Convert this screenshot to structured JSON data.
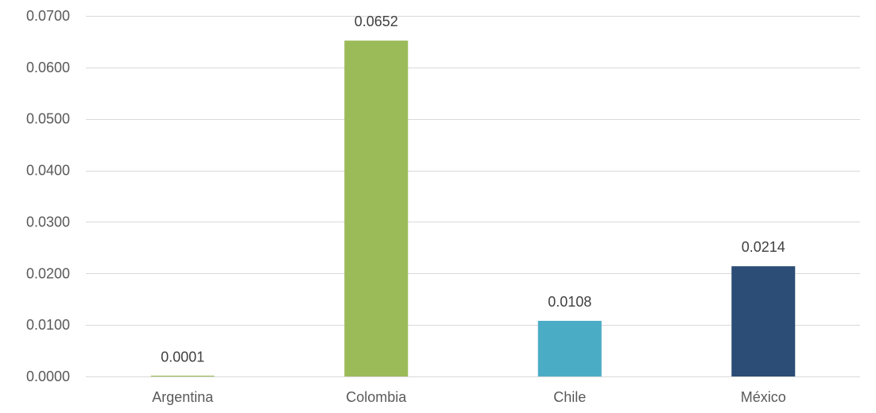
{
  "chart_data": {
    "type": "bar",
    "categories": [
      "Argentina",
      "Colombia",
      "Chile",
      "México"
    ],
    "values": [
      0.0001,
      0.0652,
      0.0108,
      0.0214
    ],
    "data_labels": [
      "0.0001",
      "0.0652",
      "0.0108",
      "0.0214"
    ],
    "colors": [
      "#9bbb59",
      "#9bbb59",
      "#4bacc6",
      "#2c4d75"
    ],
    "title": "",
    "xlabel": "",
    "ylabel": "",
    "ylim": [
      0,
      0.07
    ],
    "yticks": [
      0,
      0.01,
      0.02,
      0.03,
      0.04,
      0.05,
      0.06,
      0.07
    ],
    "ytick_labels": [
      "0.0000",
      "0.0100",
      "0.0200",
      "0.0300",
      "0.0400",
      "0.0500",
      "0.0600",
      "0.0700"
    ],
    "grid": true,
    "legend": "none"
  }
}
